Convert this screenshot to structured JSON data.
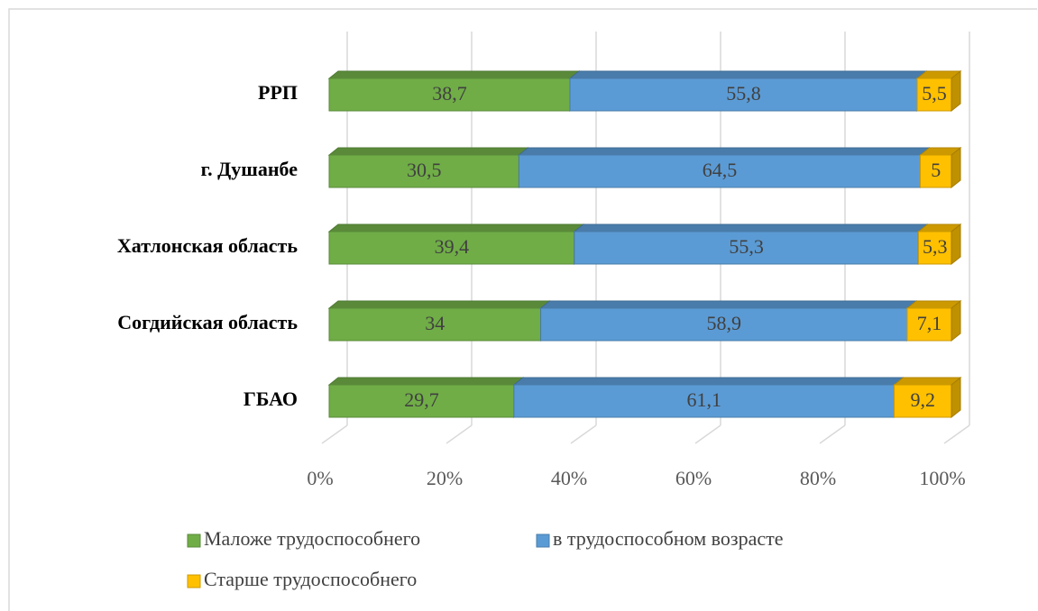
{
  "chart_data": {
    "type": "bar",
    "orientation": "horizontal",
    "stacked": "percent",
    "categories": [
      "РРП",
      "г. Душанбе",
      "Хатлонская область",
      "Согдийская область",
      "ГБАО"
    ],
    "series": [
      {
        "name": "Маложе трудоспособнего",
        "color": "#70ad47",
        "values": [
          38.7,
          30.5,
          39.4,
          34,
          29.7
        ],
        "value_labels": [
          "38,7",
          "30,5",
          "39,4",
          "34",
          "29,7"
        ]
      },
      {
        "name": "в трудоспособном возрасте",
        "color": "#5b9bd5",
        "values": [
          55.8,
          64.5,
          55.3,
          58.9,
          61.1
        ],
        "value_labels": [
          "55,8",
          "64,5",
          "55,3",
          "58,9",
          "61,1"
        ]
      },
      {
        "name": "Старше трудоспособнего",
        "color": "#ffc000",
        "values": [
          5.5,
          5,
          5.3,
          7.1,
          9.2
        ],
        "value_labels": [
          "5,5",
          "5",
          "5,3",
          "7,1",
          "9,2"
        ]
      }
    ],
    "xlim": [
      0,
      100
    ],
    "xticks": [
      {
        "value": 0,
        "label": "0%"
      },
      {
        "value": 20,
        "label": "20%"
      },
      {
        "value": 40,
        "label": "40%"
      },
      {
        "value": 60,
        "label": "60%"
      },
      {
        "value": 80,
        "label": "80%"
      },
      {
        "value": 100,
        "label": "100%"
      }
    ],
    "grid": true,
    "legend": "bottom"
  }
}
